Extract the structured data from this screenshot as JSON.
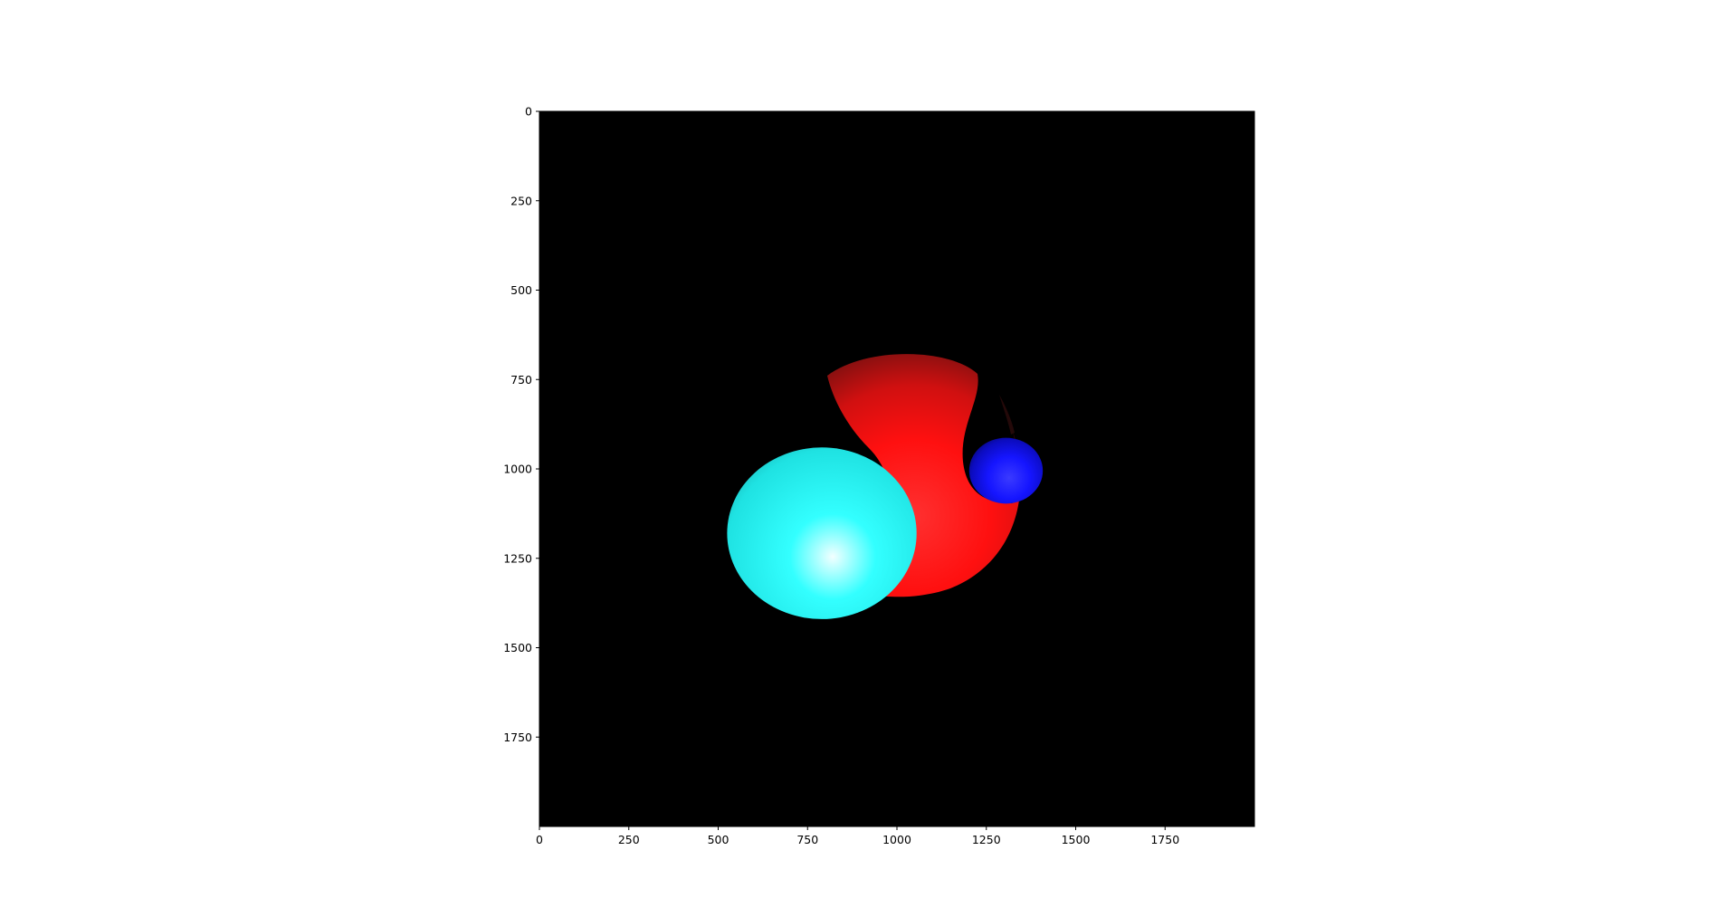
{
  "chart_data": {
    "type": "image",
    "title": "",
    "xlabel": "",
    "ylabel": "",
    "xlim": [
      0,
      2000
    ],
    "ylim": [
      2000,
      0
    ],
    "y_inverted": true,
    "grid": false,
    "background_color": "#000000",
    "x_ticks": [
      0,
      250,
      500,
      750,
      1000,
      1250,
      1500,
      1750
    ],
    "y_ticks": [
      0,
      250,
      500,
      750,
      1000,
      1250,
      1500,
      1750
    ],
    "x_tick_labels": [
      "0",
      "250",
      "500",
      "750",
      "1000",
      "1250",
      "1500",
      "1750"
    ],
    "y_tick_labels": [
      "0",
      "250",
      "500",
      "750",
      "1000",
      "1250",
      "1500",
      "1750"
    ],
    "objects": [
      {
        "name": "cyan-sphere",
        "color": "#00ffff",
        "center": [
          790,
          1180
        ],
        "radii": [
          265,
          240
        ],
        "highlight": [
          820,
          1250
        ]
      },
      {
        "name": "red-blob",
        "color": "#ff0000",
        "center": [
          1030,
          1050
        ]
      },
      {
        "name": "blue-sphere",
        "color": "#0000ff",
        "center": [
          1305,
          1005
        ],
        "radii": [
          103,
          92
        ],
        "highlight": [
          1320,
          1030
        ]
      }
    ]
  }
}
